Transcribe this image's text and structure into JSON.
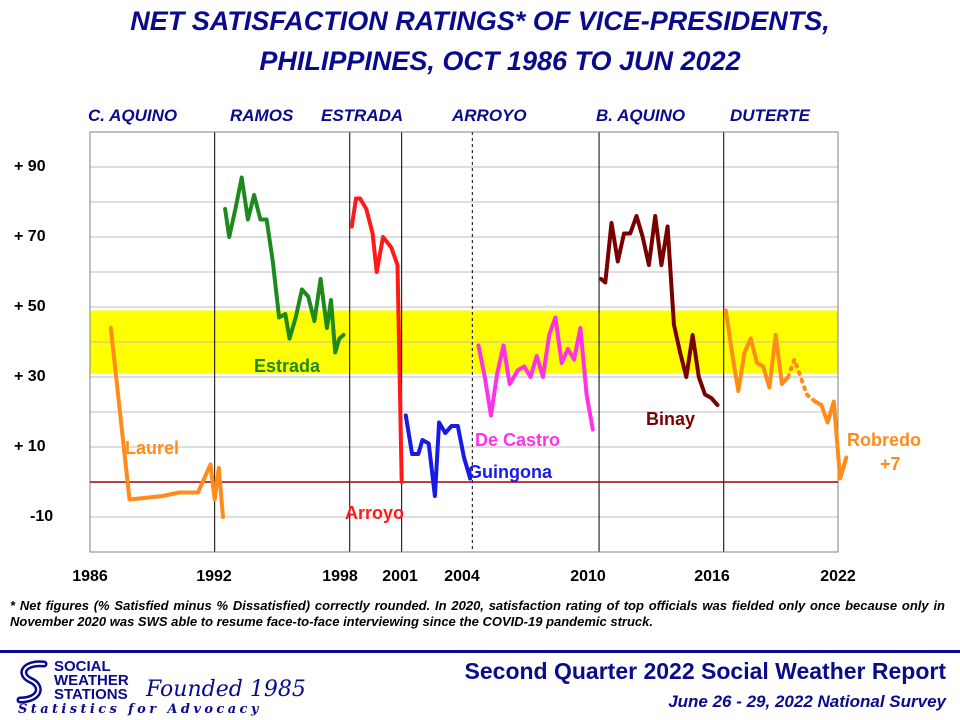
{
  "title_line1": "NET SATISFACTION RATINGS* OF VICE-PRESIDENTS,",
  "title_line2": "PHILIPPINES, OCT 1986 TO JUN 2022",
  "administrations": [
    "C. AQUINO",
    "RAMOS",
    "ESTRADA",
    "ARROYO",
    "B. AQUINO",
    "DUTERTE"
  ],
  "footnote": "* Net figures (% Satisfied minus % Dissatisfied) correctly rounded. In 2020, satisfaction rating of top officials was fielded only once because only in November 2020 was SWS able to resume face-to-face interviewing since the COVID-19 pandemic struck.",
  "org": {
    "line1": "SOCIAL",
    "line2": "WEATHER",
    "line3": "STATIONS",
    "founded": "Founded 1985",
    "tagline": "Statistics for Advocacy"
  },
  "report_title": "Second Quarter 2022 Social Weather Report",
  "report_date": "June 26 - 29, 2022 National Survey",
  "chart_data": {
    "type": "line",
    "title": "NET SATISFACTION RATINGS* OF VICE-PRESIDENTS, PHILIPPINES, OCT 1986 TO JUN 2022",
    "xlabel": "",
    "ylabel": "",
    "xlim": [
      1986,
      2022
    ],
    "ylim": [
      -20,
      100
    ],
    "x_ticks": [
      1986,
      1992,
      1998,
      2001,
      2004,
      2010,
      2016,
      2022
    ],
    "y_ticks": [
      -10,
      10,
      30,
      50,
      70,
      90
    ],
    "y_tick_labels": [
      "-10",
      "+ 10",
      "+ 30",
      "+ 50",
      "+ 70",
      "+ 90"
    ],
    "grid": true,
    "highlight_band": {
      "from": 31,
      "to": 49,
      "color": "#ffff00"
    },
    "zero_line": {
      "y": 0,
      "color": "#a00000"
    },
    "admin_boundaries": [
      1992.0,
      1998.5,
      2001.0,
      2004.4,
      2010.5,
      2016.5
    ],
    "dashed_boundaries": [
      2004.4
    ],
    "series": [
      {
        "name": "Laurel",
        "color": "#ff8c1a",
        "x": [
          1987.0,
          1987.9,
          1989.5,
          1990.3,
          1991.2,
          1991.8,
          1992.0,
          1992.2,
          1992.4
        ],
        "y": [
          44,
          -5,
          -4,
          -3,
          -3,
          5,
          -5,
          4,
          -10
        ]
      },
      {
        "name": "Estrada",
        "color": "#1e8a1e",
        "x": [
          1992.5,
          1992.7,
          1993.0,
          1993.3,
          1993.6,
          1993.9,
          1994.2,
          1994.5,
          1994.8,
          1995.1,
          1995.4,
          1995.6,
          1995.9,
          1996.2,
          1996.5,
          1996.8,
          1997.1,
          1997.4,
          1997.6,
          1997.8,
          1998.0,
          1998.2
        ],
        "y": [
          78,
          70,
          78,
          87,
          75,
          82,
          75,
          75,
          63,
          47,
          48,
          41,
          47,
          55,
          53,
          46,
          58,
          44,
          52,
          37,
          41,
          42
        ]
      },
      {
        "name": "Arroyo",
        "color": "#ff1a1a",
        "x": [
          1998.6,
          1998.8,
          1999.0,
          1999.3,
          1999.6,
          1999.8,
          2000.1,
          2000.5,
          2000.8,
          2001.0
        ],
        "y": [
          73,
          81,
          81,
          78,
          71,
          60,
          70,
          67,
          62,
          0
        ]
      },
      {
        "name": "Guingona",
        "color": "#1a1ae6",
        "x": [
          2001.2,
          2001.5,
          2001.8,
          2002.0,
          2002.3,
          2002.6,
          2002.8,
          2003.1,
          2003.4,
          2003.7,
          2004.0,
          2004.3
        ],
        "y": [
          19,
          8,
          8,
          12,
          11,
          -4,
          17,
          14,
          16,
          16,
          7,
          1
        ]
      },
      {
        "name": "De Castro",
        "color": "#ff33e6",
        "x": [
          2004.7,
          2005.0,
          2005.3,
          2005.6,
          2005.9,
          2006.2,
          2006.6,
          2006.9,
          2007.2,
          2007.5,
          2007.8,
          2008.1,
          2008.4,
          2008.7,
          2009.0,
          2009.3,
          2009.6,
          2009.9,
          2010.2
        ],
        "y": [
          39,
          30,
          19,
          31,
          39,
          28,
          32,
          33,
          30,
          36,
          30,
          42,
          47,
          34,
          38,
          35,
          44,
          25,
          15
        ]
      },
      {
        "name": "Binay",
        "color": "#7a0000",
        "x": [
          2010.6,
          2010.8,
          2011.1,
          2011.4,
          2011.7,
          2012.0,
          2012.3,
          2012.6,
          2012.9,
          2013.2,
          2013.5,
          2013.8,
          2014.1,
          2014.4,
          2014.7,
          2015.0,
          2015.3,
          2015.6,
          2015.9,
          2016.2
        ],
        "y": [
          58,
          57,
          74,
          63,
          71,
          71,
          76,
          70,
          62,
          76,
          62,
          73,
          45,
          37,
          30,
          42,
          30,
          25,
          24,
          22
        ]
      },
      {
        "name": "Robredo",
        "color": "#ff8c1a",
        "x": [
          2016.6,
          2016.9,
          2017.2,
          2017.5,
          2017.8,
          2018.1,
          2018.4,
          2018.7,
          2019.0,
          2019.3,
          2019.6
        ],
        "y": [
          49,
          37,
          26,
          37,
          41,
          34,
          33,
          27,
          42,
          28,
          30
        ]
      },
      {
        "name": "Robredo (2020-2022)",
        "color": "#ff8c1a",
        "x": [
          2020.9,
          2021.2,
          2021.5,
          2021.8,
          2022.1,
          2022.4
        ],
        "y": [
          23,
          22,
          17,
          23,
          1,
          7
        ]
      }
    ],
    "dotted_segment": {
      "x": [
        2019.6,
        2019.9,
        2020.2,
        2020.5,
        2020.9
      ],
      "y": [
        30,
        35,
        30,
        25,
        23
      ],
      "color": "#ff8c1a"
    },
    "series_labels": [
      {
        "text": "Laurel",
        "color": "#ff8c1a"
      },
      {
        "text": "Estrada",
        "color": "#1e8a1e"
      },
      {
        "text": "Arroyo",
        "color": "#ff1a1a"
      },
      {
        "text": "Guingona",
        "color": "#1a1ae6"
      },
      {
        "text": "De Castro",
        "color": "#ff33e6"
      },
      {
        "text": "Binay",
        "color": "#7a0000"
      },
      {
        "text": "Robredo",
        "color": "#ff8c1a"
      },
      {
        "text": "+7",
        "color": "#ff8c1a"
      }
    ]
  }
}
